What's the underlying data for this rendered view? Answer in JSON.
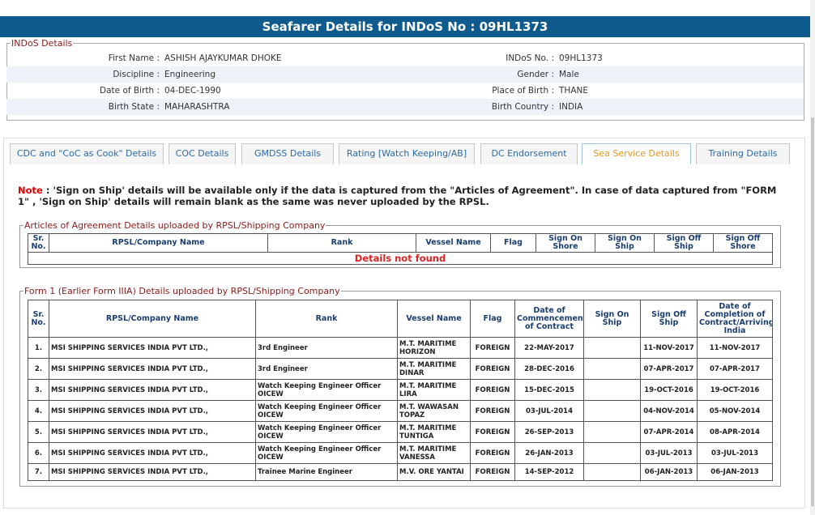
{
  "header": {
    "title": "Seafarer Details for INDoS No : 09HL1373"
  },
  "indos": {
    "legend": "INDoS Details",
    "rows": [
      [
        {
          "label": "First Name :",
          "value": "ASHISH AJAYKUMAR DHOKE"
        },
        {
          "label": "INDoS No. :",
          "value": "09HL1373"
        }
      ],
      [
        {
          "label": "Discipline :",
          "value": "Engineering"
        },
        {
          "label": "Gender :",
          "value": "Male"
        }
      ],
      [
        {
          "label": "Date of Birth :",
          "value": "04-DEC-1990"
        },
        {
          "label": "Place of Birth :",
          "value": "THANE"
        }
      ],
      [
        {
          "label": "Birth State :",
          "value": "MAHARASHTRA"
        },
        {
          "label": "Birth Country :",
          "value": "INDIA"
        }
      ]
    ]
  },
  "tabs": [
    "CDC and \"CoC as Cook\" Details",
    "COC Details",
    "GMDSS Details",
    "Rating [Watch Keeping/AB]",
    "DC Endorsement",
    "Sea Service Details",
    "Training Details"
  ],
  "active_tab": 5,
  "note": {
    "prefix": "Note",
    "text": ": 'Sign on Ship' details will be available only if the data is captured from the \"Articles of Agreement\". In case of data captured from \"FORM 1\" , 'Sign on Ship' details will remain blank as the same was never uploaded by the RPSL."
  },
  "articles": {
    "legend": "Articles of Agreement Details uploaded by RPSL/Shipping Company",
    "columns": [
      "Sr. No.",
      "RPSL/Company Name",
      "Rank",
      "Vessel Name",
      "Flag",
      "Sign On Shore",
      "Sign On Ship",
      "Sign Off Ship",
      "Sign Off Shore"
    ],
    "empty": "Details not found"
  },
  "form1": {
    "legend": "Form 1 (Earlier Form IIIA) Details uploaded by RPSL/Shipping Company",
    "columns": [
      "Sr. No.",
      "RPSL/Company Name",
      "Rank",
      "Vessel Name",
      "Flag",
      "Date of Commencement of Contract",
      "Sign On Ship",
      "Sign Off Ship",
      "Date of Completion of Contract/Arriving India"
    ],
    "rows": [
      [
        "1.",
        "MSI SHIPPING SERVICES INDIA PVT LTD.,",
        "3rd Engineer",
        "M.T. MARITIME HORIZON",
        "FOREIGN",
        "22-MAY-2017",
        null,
        "11-NOV-2017",
        "11-NOV-2017"
      ],
      [
        "2.",
        "MSI SHIPPING SERVICES INDIA PVT LTD.,",
        "3rd Engineer",
        "M.T. MARITIME DINAR",
        "FOREIGN",
        "28-DEC-2016",
        null,
        "07-APR-2017",
        "07-APR-2017"
      ],
      [
        "3.",
        "MSI SHIPPING SERVICES INDIA PVT LTD.,",
        "Watch Keeping Engineer Officer OICEW",
        "M.T. MARITIME LIRA",
        "FOREIGN",
        "15-DEC-2015",
        null,
        "19-OCT-2016",
        "19-OCT-2016"
      ],
      [
        "4.",
        "MSI SHIPPING SERVICES INDIA PVT LTD.,",
        "Watch Keeping Engineer Officer OICEW",
        "M.T. WAWASAN TOPAZ",
        "FOREIGN",
        "03-JUL-2014",
        null,
        "04-NOV-2014",
        "05-NOV-2014"
      ],
      [
        "5.",
        "MSI SHIPPING SERVICES INDIA PVT LTD.,",
        "Watch Keeping Engineer Officer OICEW",
        "M.T. MARITIME TUNTIGA",
        "FOREIGN",
        "26-SEP-2013",
        null,
        "07-APR-2014",
        "08-APR-2014"
      ],
      [
        "6.",
        "MSI SHIPPING SERVICES INDIA PVT LTD.,",
        "Watch Keeping Engineer Officer OICEW",
        "M.T. MARITIME VANESSA",
        "FOREIGN",
        "26-JAN-2013",
        null,
        "03-JUL-2013",
        "03-JUL-2013"
      ],
      [
        "7.",
        "MSI SHIPPING SERVICES INDIA PVT LTD.,",
        "Trainee Marine Engineer",
        "M.V. ORE YANTAI",
        "FOREIGN",
        "14-SEP-2012",
        null,
        "06-JAN-2013",
        "06-JAN-2013"
      ]
    ]
  }
}
